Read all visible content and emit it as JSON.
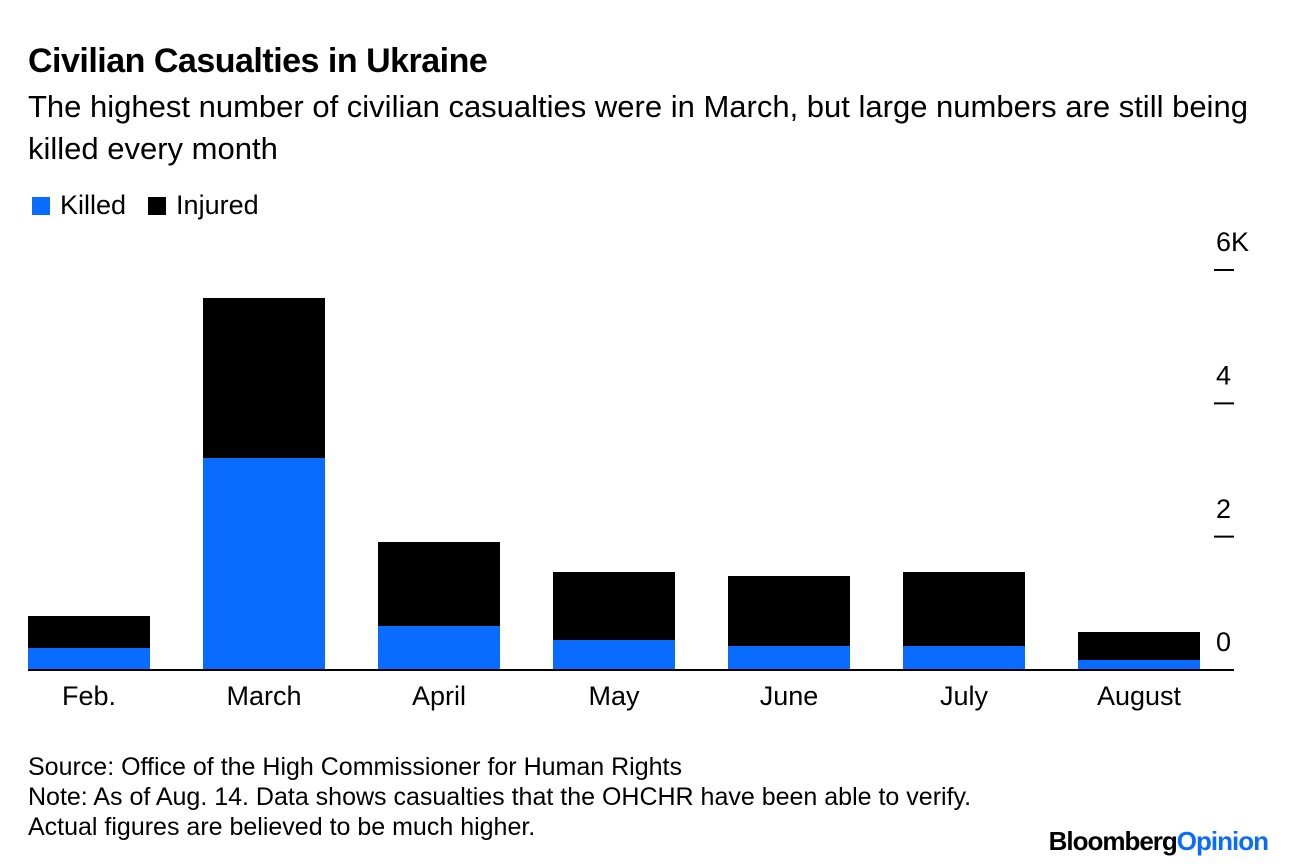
{
  "chart_data": {
    "type": "stacked_bar",
    "title": "Civilian Casualties in Ukraine",
    "subtitle": "The highest number of civilian casualties were in March, but large numbers are still being killed every month",
    "categories": [
      "Feb.",
      "March",
      "April",
      "May",
      "June",
      "July",
      "August"
    ],
    "series": [
      {
        "name": "Killed",
        "color": "#0a6cff",
        "values": [
          330,
          3180,
          660,
          450,
          360,
          360,
          150
        ]
      },
      {
        "name": "Injured",
        "color": "#000000",
        "values": [
          480,
          2400,
          1260,
          1020,
          1050,
          1110,
          420
        ]
      }
    ],
    "ylim": [
      0,
      6000
    ],
    "yticks": [
      0,
      {
        "value": 2000,
        "label": "2"
      },
      {
        "value": 4000,
        "label": "4"
      },
      {
        "value": 6000,
        "label": "6K"
      }
    ],
    "source": "Source: Office of the High Commissioner for Human Rights",
    "note": "Note: As of Aug. 14. Data shows casualties that the OHCHR have been able to verify. Actual figures are believed to be much higher.",
    "brand_main": "Bloomberg",
    "brand_sub": "Opinion"
  }
}
